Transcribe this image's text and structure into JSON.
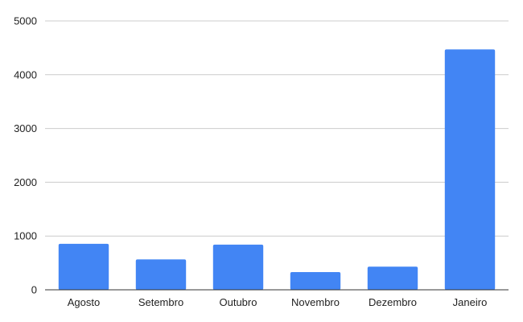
{
  "chart_data": {
    "type": "bar",
    "categories": [
      "Agosto",
      "Setembro",
      "Outubro",
      "Novembro",
      "Dezembro",
      "Janeiro"
    ],
    "values": [
      855,
      565,
      840,
      330,
      430,
      4470
    ],
    "ylim": [
      0,
      5000
    ],
    "yticks": [
      0,
      1000,
      2000,
      3000,
      4000,
      5000
    ],
    "grid": true,
    "legend": "none",
    "colors": {
      "bar": "#4285f4",
      "grid": "#cccccc",
      "axis": "#333333",
      "text": "#222222"
    }
  }
}
